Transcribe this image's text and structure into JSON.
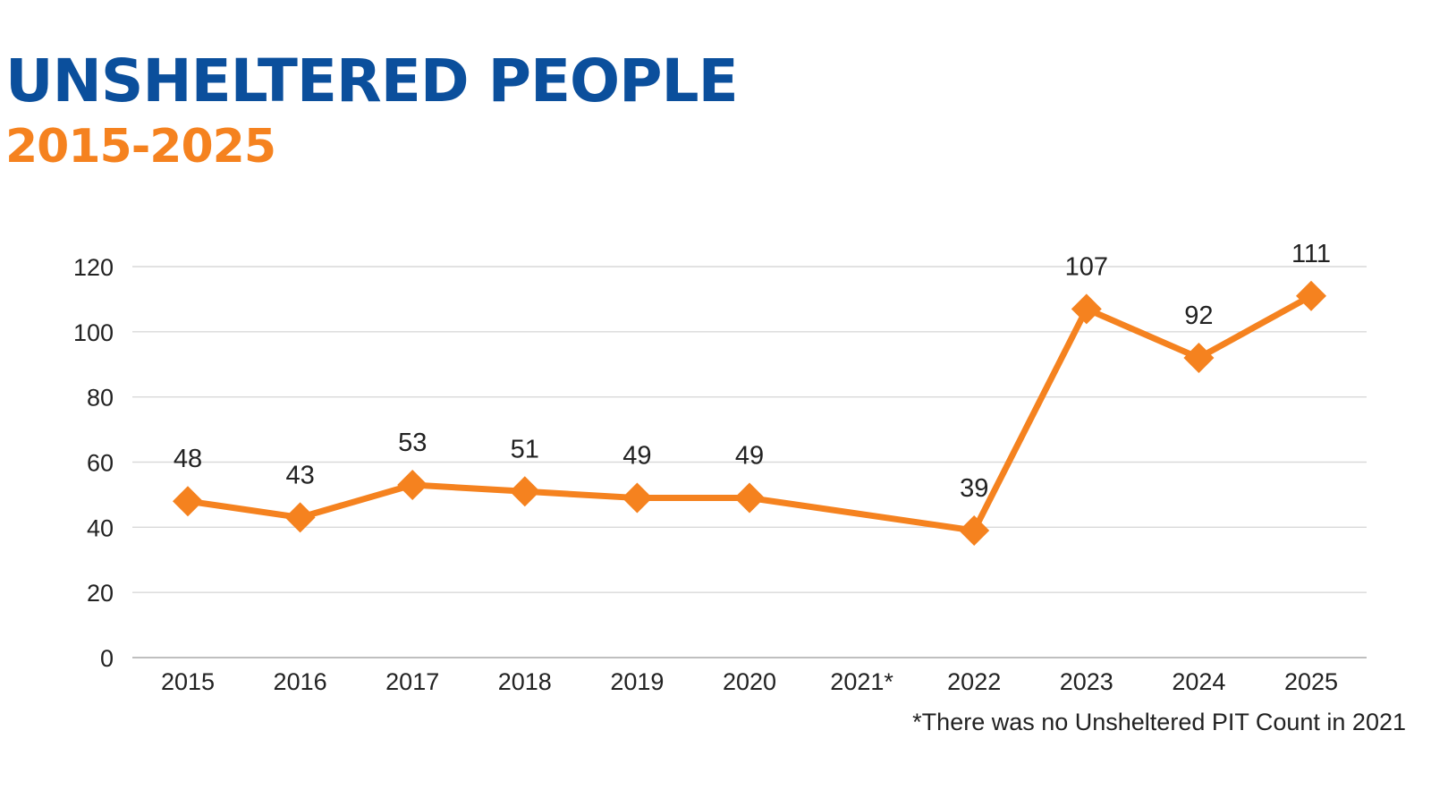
{
  "chart_data": {
    "type": "line",
    "title": "UNSHELTERED PEOPLE",
    "subtitle": "2015-2025",
    "categories": [
      "2015",
      "2016",
      "2017",
      "2018",
      "2019",
      "2020",
      "2021*",
      "2022",
      "2023",
      "2024",
      "2025"
    ],
    "series": [
      {
        "values": [
          48,
          43,
          53,
          51,
          49,
          49,
          null,
          39,
          107,
          92,
          111
        ],
        "data_labels": [
          "48",
          "43",
          "53",
          "51",
          "49",
          "49",
          "",
          "39",
          "107",
          "92",
          "111"
        ],
        "color": "#f5821f",
        "marker": "diamond"
      }
    ],
    "yticks": [
      "0",
      "20",
      "40",
      "60",
      "80",
      "100",
      "120"
    ],
    "ylim": [
      0,
      120
    ],
    "grid": true,
    "legend": "none",
    "footnote": "*There was no Unsheltered PIT Count in 2021"
  },
  "colors": {
    "title": "#0b4f9c",
    "subtitle": "#f5821f",
    "line": "#f5821f",
    "grid": "#d9d9d9",
    "axis": "#bfbfbf"
  }
}
